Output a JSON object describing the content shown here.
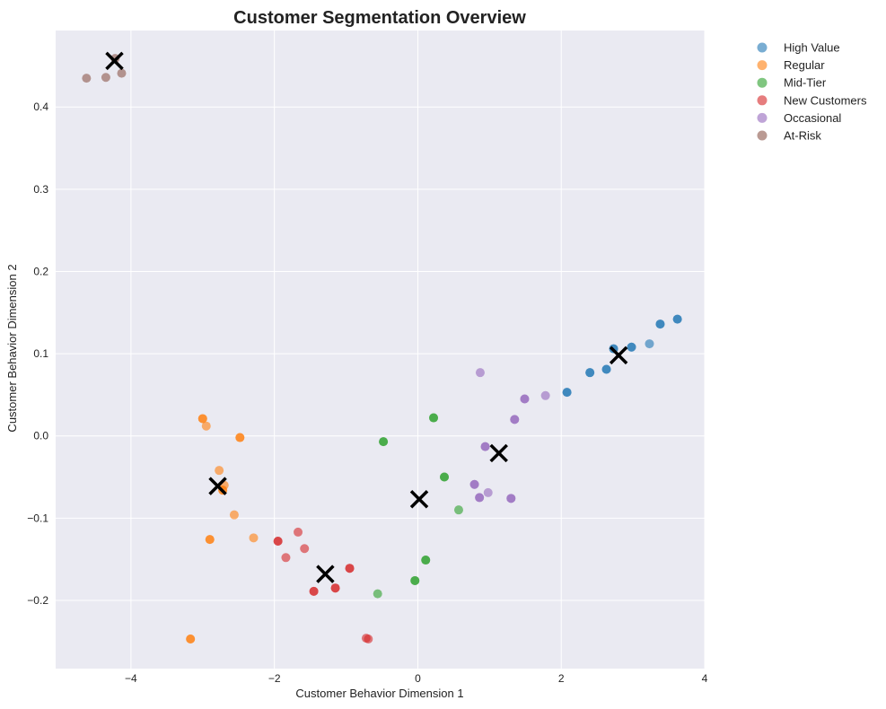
{
  "chart_data": {
    "type": "scatter",
    "title": "Customer Segmentation Overview",
    "xlabel": "Customer Behavior Dimension 1",
    "ylabel": "Customer Behavior Dimension 2",
    "xlim": [
      -5.05,
      4.0
    ],
    "ylim": [
      -0.283,
      0.493
    ],
    "xticks": [
      -4,
      -2,
      0,
      2,
      4
    ],
    "yticks": [
      -0.2,
      -0.1,
      0.0,
      0.1,
      0.2,
      0.3,
      0.4
    ],
    "xtick_labels": [
      "−4",
      "−2",
      "0",
      "2",
      "4"
    ],
    "ytick_labels": [
      "−0.2",
      "−0.1",
      "0.0",
      "0.1",
      "0.2",
      "0.3",
      "0.4"
    ],
    "grid": true,
    "legend_position": "outside-right-top",
    "centroid_marker": "x",
    "centroid_color": "#000000",
    "series": [
      {
        "name": "High Value",
        "color": "#1f77b4",
        "points": [
          [
            2.08,
            0.053
          ],
          [
            2.08,
            0.053
          ],
          [
            2.4,
            0.077
          ],
          [
            2.4,
            0.077
          ],
          [
            2.63,
            0.081
          ],
          [
            2.63,
            0.081
          ],
          [
            2.73,
            0.106
          ],
          [
            2.73,
            0.106
          ],
          [
            2.98,
            0.108
          ],
          [
            2.98,
            0.108
          ],
          [
            3.23,
            0.112
          ],
          [
            3.38,
            0.136
          ],
          [
            3.38,
            0.136
          ],
          [
            3.62,
            0.142
          ],
          [
            3.62,
            0.142
          ]
        ]
      },
      {
        "name": "Regular",
        "color": "#ff7f0e",
        "points": [
          [
            -3.0,
            0.021
          ],
          [
            -3.0,
            0.021
          ],
          [
            -2.95,
            0.012
          ],
          [
            -2.48,
            -0.002
          ],
          [
            -2.48,
            -0.002
          ],
          [
            -2.77,
            -0.042
          ],
          [
            -2.7,
            -0.06
          ],
          [
            -2.72,
            -0.066
          ],
          [
            -2.72,
            -0.066
          ],
          [
            -2.56,
            -0.096
          ],
          [
            -2.9,
            -0.126
          ],
          [
            -2.9,
            -0.126
          ],
          [
            -2.29,
            -0.124
          ],
          [
            -3.17,
            -0.247
          ],
          [
            -3.17,
            -0.247
          ]
        ]
      },
      {
        "name": "Mid-Tier",
        "color": "#2ca02c",
        "points": [
          [
            -0.48,
            -0.007
          ],
          [
            -0.48,
            -0.007
          ],
          [
            0.22,
            0.022
          ],
          [
            0.22,
            0.022
          ],
          [
            0.37,
            -0.05
          ],
          [
            0.37,
            -0.05
          ],
          [
            0.57,
            -0.09
          ],
          [
            0.11,
            -0.151
          ],
          [
            0.11,
            -0.151
          ],
          [
            -0.04,
            -0.176
          ],
          [
            -0.04,
            -0.176
          ],
          [
            -0.56,
            -0.192
          ]
        ]
      },
      {
        "name": "New Customers",
        "color": "#d62728",
        "points": [
          [
            -1.95,
            -0.128
          ],
          [
            -1.95,
            -0.128
          ],
          [
            -1.67,
            -0.117
          ],
          [
            -1.84,
            -0.148
          ],
          [
            -1.58,
            -0.137
          ],
          [
            -0.95,
            -0.161
          ],
          [
            -0.95,
            -0.161
          ],
          [
            -1.45,
            -0.189
          ],
          [
            -1.45,
            -0.189
          ],
          [
            -1.15,
            -0.185
          ],
          [
            -1.15,
            -0.185
          ],
          [
            -0.69,
            -0.247
          ],
          [
            -0.72,
            -0.246
          ]
        ]
      },
      {
        "name": "Occasional",
        "color": "#9467bd",
        "points": [
          [
            0.87,
            0.077
          ],
          [
            1.49,
            0.045
          ],
          [
            1.49,
            0.045
          ],
          [
            1.78,
            0.049
          ],
          [
            1.35,
            0.02
          ],
          [
            1.35,
            0.02
          ],
          [
            0.94,
            -0.013
          ],
          [
            0.94,
            -0.013
          ],
          [
            0.79,
            -0.059
          ],
          [
            0.79,
            -0.059
          ],
          [
            0.98,
            -0.069
          ],
          [
            0.86,
            -0.075
          ],
          [
            0.86,
            -0.075
          ],
          [
            1.3,
            -0.076
          ],
          [
            1.3,
            -0.076
          ]
        ]
      },
      {
        "name": "At-Risk",
        "color": "#8c564b",
        "points": [
          [
            -4.62,
            0.435
          ],
          [
            -4.35,
            0.436
          ],
          [
            -4.13,
            0.441
          ],
          [
            -4.22,
            0.459
          ]
        ]
      }
    ],
    "centroids": [
      [
        2.8,
        0.098
      ],
      [
        -2.79,
        -0.061
      ],
      [
        0.02,
        -0.077
      ],
      [
        -1.29,
        -0.168
      ],
      [
        1.13,
        -0.021
      ],
      [
        -4.23,
        0.456
      ]
    ]
  }
}
